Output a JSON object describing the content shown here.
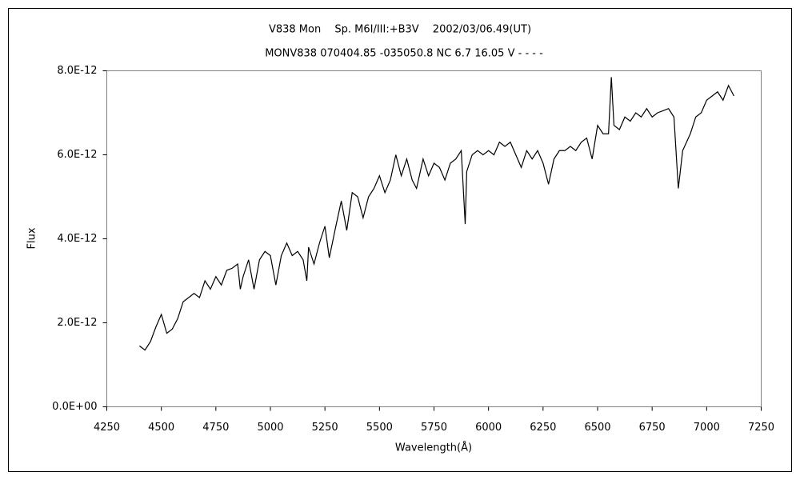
{
  "chart_data": {
    "type": "line",
    "title": "V838 Mon　 Sp. M6I/III:+B3V　 2002/03/06.49(UT)",
    "subtitle": "MONV838 070404.85 -035050.8 NC 6.7 16.05 V - - - -",
    "x_label": "Wavelength(Å)",
    "y_label": "Flux",
    "xlim": [
      4250,
      7250
    ],
    "xticks": [
      4250,
      4500,
      4750,
      5000,
      5250,
      5500,
      5750,
      6000,
      6250,
      6500,
      6750,
      7000,
      7250
    ],
    "ylim": [
      0,
      8e-12
    ],
    "yticks": [
      {
        "value": 0,
        "label": "0.0E+00"
      },
      {
        "value": 2e-12,
        "label": "2.0E-12"
      },
      {
        "value": 4e-12,
        "label": "4.0E-12"
      },
      {
        "value": 6e-12,
        "label": "6.0E-12"
      },
      {
        "value": 8e-12,
        "label": "8.0E-12"
      }
    ],
    "color": "#000000",
    "x": [
      4400,
      4425,
      4450,
      4475,
      4500,
      4525,
      4550,
      4575,
      4600,
      4625,
      4650,
      4675,
      4700,
      4725,
      4750,
      4775,
      4800,
      4825,
      4850,
      4862,
      4875,
      4900,
      4925,
      4950,
      4975,
      5000,
      5025,
      5050,
      5075,
      5100,
      5125,
      5150,
      5167,
      5175,
      5200,
      5225,
      5250,
      5270,
      5300,
      5325,
      5350,
      5375,
      5400,
      5425,
      5450,
      5475,
      5500,
      5525,
      5550,
      5575,
      5600,
      5625,
      5650,
      5670,
      5700,
      5725,
      5750,
      5775,
      5800,
      5825,
      5850,
      5875,
      5893,
      5900,
      5925,
      5950,
      5975,
      6000,
      6025,
      6050,
      6075,
      6100,
      6125,
      6150,
      6175,
      6200,
      6225,
      6250,
      6275,
      6300,
      6325,
      6350,
      6375,
      6400,
      6425,
      6450,
      6475,
      6500,
      6525,
      6550,
      6563,
      6575,
      6600,
      6625,
      6650,
      6675,
      6700,
      6725,
      6750,
      6775,
      6800,
      6825,
      6850,
      6870,
      6890,
      6925,
      6950,
      6975,
      7000,
      7025,
      7050,
      7075,
      7100,
      7125
    ],
    "values": [
      1.45e-12,
      1.35e-12,
      1.55e-12,
      1.9e-12,
      2.2e-12,
      1.75e-12,
      1.85e-12,
      2.1e-12,
      2.5e-12,
      2.6e-12,
      2.7e-12,
      2.6e-12,
      3e-12,
      2.8e-12,
      3.1e-12,
      2.9e-12,
      3.25e-12,
      3.3e-12,
      3.4e-12,
      2.8e-12,
      3.1e-12,
      3.5e-12,
      2.8e-12,
      3.5e-12,
      3.7e-12,
      3.6e-12,
      2.9e-12,
      3.6e-12,
      3.9e-12,
      3.6e-12,
      3.7e-12,
      3.5e-12,
      3e-12,
      3.8e-12,
      3.4e-12,
      3.9e-12,
      4.3e-12,
      3.55e-12,
      4.3e-12,
      4.9e-12,
      4.2e-12,
      5.1e-12,
      5e-12,
      4.5e-12,
      5e-12,
      5.2e-12,
      5.5e-12,
      5.1e-12,
      5.4e-12,
      6e-12,
      5.5e-12,
      5.9e-12,
      5.4e-12,
      5.2e-12,
      5.9e-12,
      5.5e-12,
      5.8e-12,
      5.7e-12,
      5.4e-12,
      5.8e-12,
      5.9e-12,
      6.1e-12,
      4.35e-12,
      5.6e-12,
      6e-12,
      6.1e-12,
      6e-12,
      6.1e-12,
      6e-12,
      6.3e-12,
      6.2e-12,
      6.3e-12,
      6e-12,
      5.7e-12,
      6.1e-12,
      5.9e-12,
      6.1e-12,
      5.8e-12,
      5.3e-12,
      5.9e-12,
      6.1e-12,
      6.1e-12,
      6.2e-12,
      6.1e-12,
      6.3e-12,
      6.4e-12,
      5.9e-12,
      6.7e-12,
      6.5e-12,
      6.5e-12,
      7.85e-12,
      6.7e-12,
      6.6e-12,
      6.9e-12,
      6.8e-12,
      7e-12,
      6.9e-12,
      7.1e-12,
      6.9e-12,
      7e-12,
      7.05e-12,
      7.1e-12,
      6.9e-12,
      5.2e-12,
      6.1e-12,
      6.5e-12,
      6.9e-12,
      7e-12,
      7.3e-12,
      7.4e-12,
      7.5e-12,
      7.3e-12,
      7.65e-12,
      7.4e-12
    ]
  }
}
